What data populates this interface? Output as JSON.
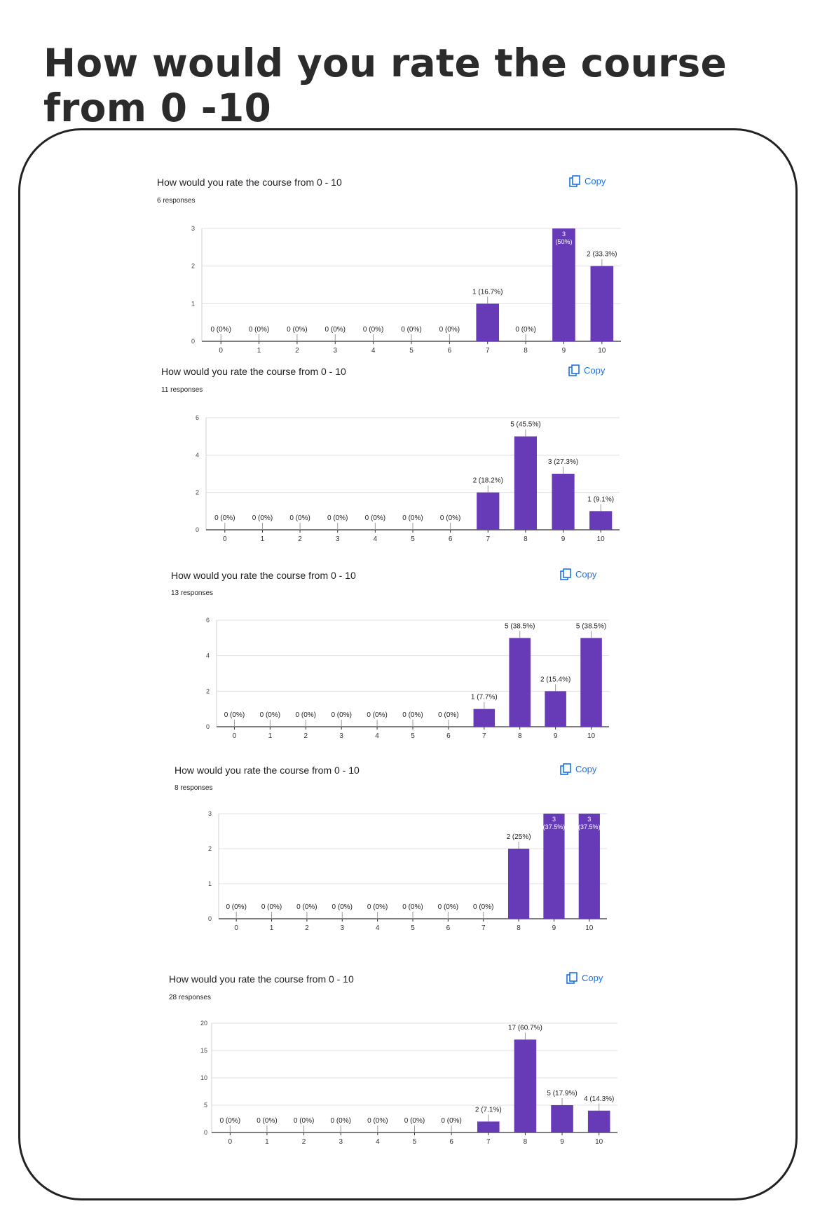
{
  "page_title": "How would you rate the course from 0 -10",
  "colors": {
    "bar": "#673ab7",
    "copy": "#1a73e8",
    "grid": "#e0e0e0"
  },
  "copy_icon": "copy-icon",
  "chart_data": [
    {
      "type": "bar",
      "title": "How would you rate the course from 0 - 10",
      "responses": "6 responses",
      "copy_label": "Copy",
      "categories": [
        "0",
        "1",
        "2",
        "3",
        "4",
        "5",
        "6",
        "7",
        "8",
        "9",
        "10"
      ],
      "values": [
        0,
        0,
        0,
        0,
        0,
        0,
        0,
        1,
        0,
        3,
        2
      ],
      "labels": [
        "0 (0%)",
        "0 (0%)",
        "0 (0%)",
        "0 (0%)",
        "0 (0%)",
        "0 (0%)",
        "0 (0%)",
        "1 (16.7%)",
        "0 (0%)",
        "3 (50%)",
        "2 (33.3%)"
      ],
      "yticks": [
        0,
        1,
        2,
        3
      ],
      "ylim": [
        0,
        3
      ],
      "grid": true
    },
    {
      "type": "bar",
      "title": "How would you rate the course from 0 - 10",
      "responses": "11 responses",
      "copy_label": "Copy",
      "categories": [
        "0",
        "1",
        "2",
        "3",
        "4",
        "5",
        "6",
        "7",
        "8",
        "9",
        "10"
      ],
      "values": [
        0,
        0,
        0,
        0,
        0,
        0,
        0,
        2,
        5,
        3,
        1
      ],
      "labels": [
        "0 (0%)",
        "0 (0%)",
        "0 (0%)",
        "0 (0%)",
        "0 (0%)",
        "0 (0%)",
        "0 (0%)",
        "2 (18.2%)",
        "5 (45.5%)",
        "3 (27.3%)",
        "1 (9.1%)"
      ],
      "yticks": [
        0,
        2,
        4,
        6
      ],
      "ylim": [
        0,
        6
      ],
      "grid": true
    },
    {
      "type": "bar",
      "title": "How would you rate the course from 0 - 10",
      "responses": "13 responses",
      "copy_label": "Copy",
      "categories": [
        "0",
        "1",
        "2",
        "3",
        "4",
        "5",
        "6",
        "7",
        "8",
        "9",
        "10"
      ],
      "values": [
        0,
        0,
        0,
        0,
        0,
        0,
        0,
        1,
        5,
        2,
        5
      ],
      "labels": [
        "0 (0%)",
        "0 (0%)",
        "0 (0%)",
        "0 (0%)",
        "0 (0%)",
        "0 (0%)",
        "0 (0%)",
        "1 (7.7%)",
        "5 (38.5%)",
        "2 (15.4%)",
        "5 (38.5%)"
      ],
      "yticks": [
        0,
        2,
        4,
        6
      ],
      "ylim": [
        0,
        6
      ],
      "grid": true
    },
    {
      "type": "bar",
      "title": "How would you rate the course from 0 - 10",
      "responses": "8 responses",
      "copy_label": "Copy",
      "categories": [
        "0",
        "1",
        "2",
        "3",
        "4",
        "5",
        "6",
        "7",
        "8",
        "9",
        "10"
      ],
      "values": [
        0,
        0,
        0,
        0,
        0,
        0,
        0,
        0,
        2,
        3,
        3
      ],
      "labels": [
        "0 (0%)",
        "0 (0%)",
        "0 (0%)",
        "0 (0%)",
        "0 (0%)",
        "0 (0%)",
        "0 (0%)",
        "0 (0%)",
        "2 (25%)",
        "3 (37.5%)",
        "3 (37.5%)"
      ],
      "yticks": [
        0,
        1,
        2,
        3
      ],
      "ylim": [
        0,
        3
      ],
      "grid": true
    },
    {
      "type": "bar",
      "title": "How would you rate the course from 0 - 10",
      "responses": "28 responses",
      "copy_label": "Copy",
      "categories": [
        "0",
        "1",
        "2",
        "3",
        "4",
        "5",
        "6",
        "7",
        "8",
        "9",
        "10"
      ],
      "values": [
        0,
        0,
        0,
        0,
        0,
        0,
        0,
        2,
        17,
        5,
        4
      ],
      "labels": [
        "0 (0%)",
        "0 (0%)",
        "0 (0%)",
        "0 (0%)",
        "0 (0%)",
        "0 (0%)",
        "0 (0%)",
        "2 (7.1%)",
        "17 (60.7%)",
        "5 (17.9%)",
        "4 (14.3%)"
      ],
      "yticks": [
        0,
        5,
        10,
        15,
        20
      ],
      "ylim": [
        0,
        20
      ],
      "grid": true
    }
  ]
}
